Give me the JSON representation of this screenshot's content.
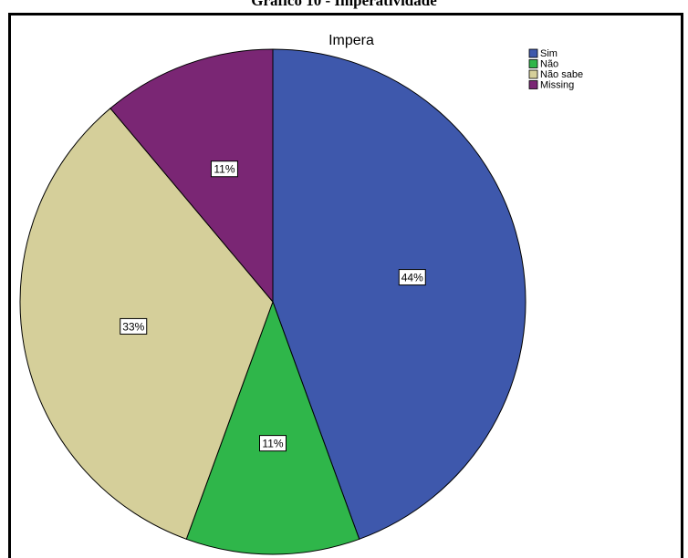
{
  "outer_title": "Gráfico 10 - Imperatividade",
  "chart_data": {
    "type": "pie",
    "title": "Impera",
    "legend_position": "top-right",
    "categories": [
      "Sim",
      "Não",
      "Não sabe",
      "Missing"
    ],
    "values": [
      44,
      11,
      33,
      11
    ],
    "data_labels": [
      "44%",
      "11%",
      "33%",
      "11%"
    ],
    "colors": [
      "#3e58ac",
      "#2fb64a",
      "#d5cf9a",
      "#7a2674"
    ]
  }
}
